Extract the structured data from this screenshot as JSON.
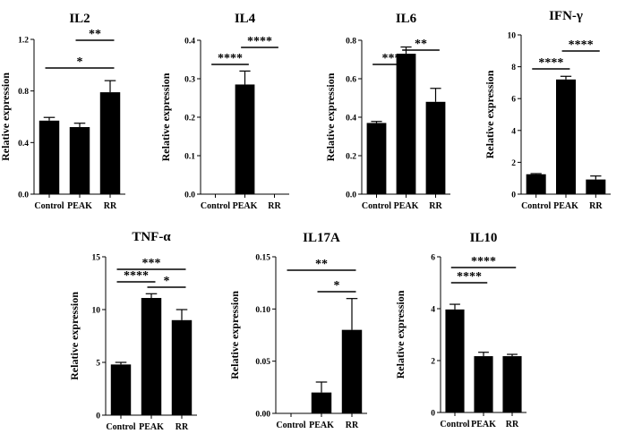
{
  "colors": {
    "bar": "#000000",
    "axis": "#000000",
    "background": "#ffffff"
  },
  "chart_data": [
    {
      "type": "bar",
      "title": "IL2",
      "xlabel": "",
      "ylabel": "Relative expression",
      "categories": [
        "Control",
        "PEAK",
        "RR"
      ],
      "values": [
        0.57,
        0.52,
        0.79
      ],
      "errors": [
        0.025,
        0.03,
        0.09
      ],
      "ylim": [
        0,
        1.2
      ],
      "yticks": [
        "0.0",
        "0.4",
        "0.8",
        "1.2"
      ],
      "significance": [
        {
          "from": 1,
          "to": 2,
          "label": "**"
        },
        {
          "from": 0,
          "to": 2,
          "label": "*"
        }
      ]
    },
    {
      "type": "bar",
      "title": "IL4",
      "xlabel": "",
      "ylabel": "Relative expression",
      "categories": [
        "Control",
        "PEAK",
        "RR"
      ],
      "values": [
        0,
        0.285,
        0
      ],
      "errors": [
        0,
        0.035,
        0
      ],
      "ylim": [
        0,
        0.4
      ],
      "yticks": [
        "0.0",
        "0.1",
        "0.2",
        "0.3",
        "0.4"
      ],
      "significance": [
        {
          "from": 0,
          "to": 1,
          "label": "****"
        },
        {
          "from": 1,
          "to": 2,
          "label": "****"
        }
      ]
    },
    {
      "type": "bar",
      "title": "IL6",
      "xlabel": "",
      "ylabel": "Relative expression",
      "categories": [
        "Control",
        "PEAK",
        "RR"
      ],
      "values": [
        0.37,
        0.73,
        0.48
      ],
      "errors": [
        0.008,
        0.035,
        0.07
      ],
      "ylim": [
        0,
        0.8
      ],
      "yticks": [
        "0.0",
        "0.2",
        "0.4",
        "0.6",
        "0.8"
      ],
      "significance": [
        {
          "from": 0,
          "to": 1,
          "label": "***"
        },
        {
          "from": 1,
          "to": 2,
          "label": "**"
        }
      ]
    },
    {
      "type": "bar",
      "title": "IFN-γ",
      "xlabel": "",
      "ylabel": "Relative expression",
      "categories": [
        "Control",
        "PEAK",
        "RR"
      ],
      "values": [
        1.25,
        7.2,
        0.92
      ],
      "errors": [
        0.04,
        0.2,
        0.22
      ],
      "ylim": [
        0,
        10
      ],
      "yticks": [
        "0",
        "2",
        "4",
        "6",
        "8",
        "10"
      ],
      "significance": [
        {
          "from": 0,
          "to": 1,
          "label": "****"
        },
        {
          "from": 1,
          "to": 2,
          "label": "****"
        }
      ]
    },
    {
      "type": "bar",
      "title": "TNF-α",
      "xlabel": "",
      "ylabel": "Relative expression",
      "categories": [
        "Control",
        "PEAK",
        "RR"
      ],
      "values": [
        4.8,
        11.1,
        9.0
      ],
      "errors": [
        0.2,
        0.4,
        1.0
      ],
      "ylim": [
        0,
        15
      ],
      "yticks": [
        "0",
        "5",
        "10",
        "15"
      ],
      "significance": [
        {
          "from": 1,
          "to": 2,
          "label": "*"
        },
        {
          "from": 0,
          "to": 1,
          "label": "****"
        },
        {
          "from": 0,
          "to": 2,
          "label": "***"
        }
      ]
    },
    {
      "type": "bar",
      "title": "IL17A",
      "xlabel": "",
      "ylabel": "Relative expression",
      "categories": [
        "Control",
        "PEAK",
        "RR"
      ],
      "values": [
        0,
        0.02,
        0.08
      ],
      "errors": [
        0,
        0.01,
        0.03
      ],
      "ylim": [
        0,
        0.15
      ],
      "yticks": [
        "0.00",
        "0.05",
        "0.10",
        "0.15"
      ],
      "significance": [
        {
          "from": 1,
          "to": 2,
          "label": "*"
        },
        {
          "from": 0,
          "to": 2,
          "label": "**"
        }
      ]
    },
    {
      "type": "bar",
      "title": "IL10",
      "xlabel": "",
      "ylabel": "Relative expression",
      "categories": [
        "Control",
        "PEAK",
        "RR"
      ],
      "values": [
        3.97,
        2.17,
        2.17
      ],
      "errors": [
        0.2,
        0.15,
        0.07
      ],
      "ylim": [
        0,
        6
      ],
      "yticks": [
        "0",
        "2",
        "4",
        "6"
      ],
      "significance": [
        {
          "from": 0,
          "to": 1,
          "label": "****"
        },
        {
          "from": 0,
          "to": 2,
          "label": "****"
        }
      ]
    }
  ]
}
